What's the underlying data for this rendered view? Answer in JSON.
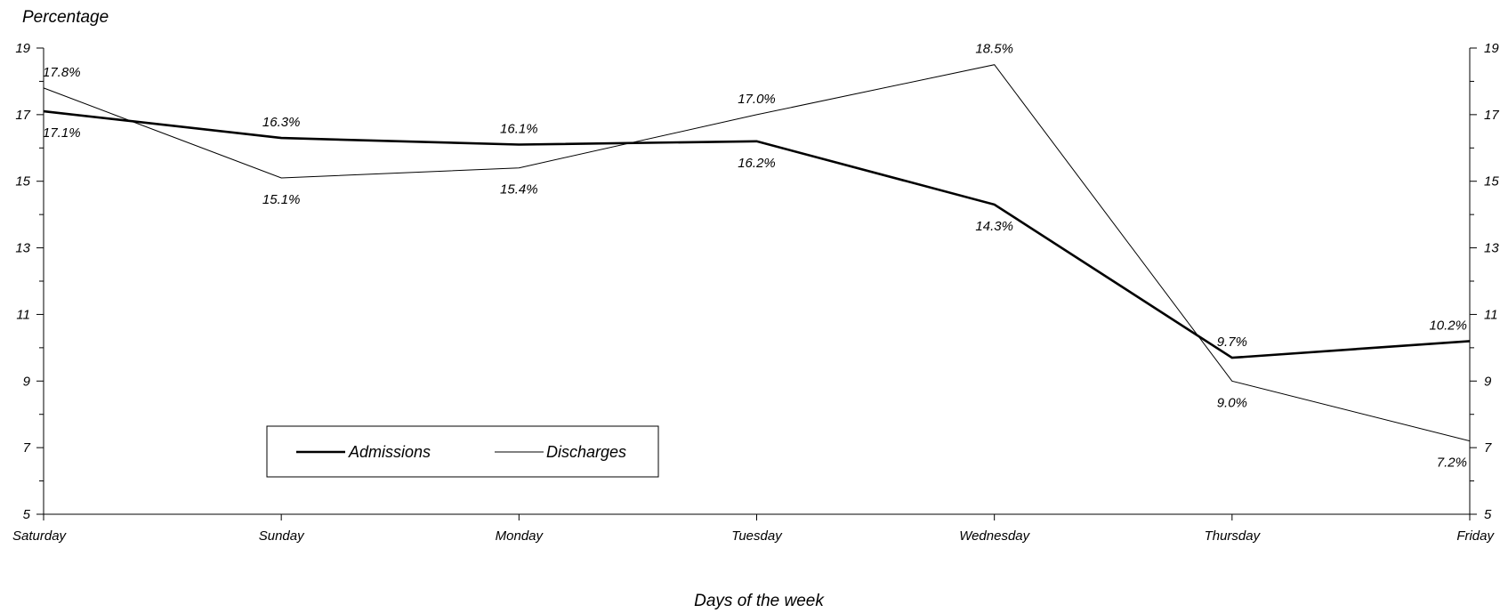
{
  "chart_data": {
    "type": "line",
    "title": "",
    "ylabel": "Percentage",
    "xlabel": "Days of the week",
    "categories": [
      "Saturday",
      "Sunday",
      "Monday",
      "Tuesday",
      "Wednesday",
      "Thursday",
      "Friday"
    ],
    "ylim": [
      5,
      19
    ],
    "yticks": [
      5,
      7,
      9,
      11,
      13,
      15,
      17,
      19
    ],
    "grid": false,
    "legend_position": "bottom-left",
    "series": [
      {
        "name": "Admissions",
        "values": [
          17.1,
          16.3,
          16.1,
          16.2,
          14.3,
          9.7,
          10.2
        ],
        "labels": [
          "17.1%",
          "16.3%",
          "16.1%",
          "16.2%",
          "14.3%",
          "9.7%",
          "10.2%"
        ],
        "color": "#000000",
        "style": "thick"
      },
      {
        "name": "Discharges",
        "values": [
          17.8,
          15.1,
          15.4,
          17.0,
          18.5,
          9.0,
          7.2
        ],
        "labels": [
          "17.8%",
          "15.1%",
          "15.4%",
          "17.0%",
          "18.5%",
          "9.0%",
          "7.2%"
        ],
        "color": "#000000",
        "style": "thin"
      }
    ]
  }
}
